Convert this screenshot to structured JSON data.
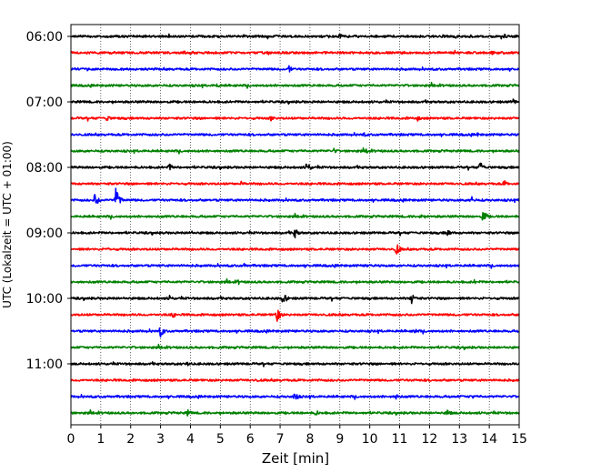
{
  "chart_data": {
    "type": "line",
    "title": "",
    "xlabel": "Zeit  [min]",
    "ylabel": "UTC (Lokalzeit = UTC + 01:00)",
    "xlim": [
      0,
      15
    ],
    "x_ticks": [
      0,
      1,
      2,
      3,
      4,
      5,
      6,
      7,
      8,
      9,
      10,
      11,
      12,
      13,
      14,
      15
    ],
    "y_tick_labels": [
      "06:00",
      "07:00",
      "08:00",
      "09:00",
      "10:00",
      "11:00"
    ],
    "grid": "vertical dotted",
    "colors_cycle": [
      "#000000",
      "#ff0000",
      "#0000ff",
      "#008000"
    ],
    "traces": [
      {
        "time": "06:00",
        "color": "#000000",
        "events": [
          {
            "t": 9.0,
            "a": 0.35
          },
          {
            "t": 14.5,
            "a": 0.3
          }
        ]
      },
      {
        "time": "06:15",
        "color": "#ff0000",
        "events": [
          {
            "t": 3.8,
            "a": 0.3
          },
          {
            "t": 14.1,
            "a": 0.25
          }
        ]
      },
      {
        "time": "06:30",
        "color": "#0000ff",
        "events": [
          {
            "t": 7.3,
            "a": 0.45
          }
        ]
      },
      {
        "time": "06:45",
        "color": "#008000",
        "events": [
          {
            "t": 4.9,
            "a": 0.35
          }
        ]
      },
      {
        "time": "07:00",
        "color": "#000000",
        "events": [
          {
            "t": 14.8,
            "a": 0.4
          }
        ]
      },
      {
        "time": "07:15",
        "color": "#ff0000",
        "events": [
          {
            "t": 1.2,
            "a": 0.45
          },
          {
            "t": 6.7,
            "a": 0.35
          },
          {
            "t": 11.6,
            "a": 0.35
          }
        ]
      },
      {
        "time": "07:30",
        "color": "#0000ff",
        "events": [
          {
            "t": 9.8,
            "a": 0.3
          },
          {
            "t": 13.6,
            "a": 0.25
          }
        ]
      },
      {
        "time": "07:45",
        "color": "#008000",
        "events": [
          {
            "t": 8.8,
            "a": 0.35
          },
          {
            "t": 9.9,
            "a": 0.3
          }
        ]
      },
      {
        "time": "08:00",
        "color": "#000000",
        "events": [
          {
            "t": 7.9,
            "a": 0.75
          },
          {
            "t": 13.7,
            "a": 0.7
          },
          {
            "t": 3.3,
            "a": 0.45
          }
        ]
      },
      {
        "time": "08:15",
        "color": "#ff0000",
        "events": [
          {
            "t": 14.5,
            "a": 0.45
          },
          {
            "t": 5.7,
            "a": 0.3
          }
        ]
      },
      {
        "time": "08:30",
        "color": "#0000ff",
        "events": [
          {
            "t": 0.8,
            "a": 0.85
          },
          {
            "t": 1.5,
            "a": 1.45
          },
          {
            "t": 13.4,
            "a": 0.5
          }
        ]
      },
      {
        "time": "08:45",
        "color": "#008000",
        "events": [
          {
            "t": 13.8,
            "a": 0.8
          },
          {
            "t": 11.7,
            "a": 0.35
          }
        ]
      },
      {
        "time": "09:00",
        "color": "#000000",
        "events": [
          {
            "t": 7.5,
            "a": 0.65
          },
          {
            "t": 12.6,
            "a": 0.55
          },
          {
            "t": 4.0,
            "a": 0.35
          }
        ]
      },
      {
        "time": "09:15",
        "color": "#ff0000",
        "events": [
          {
            "t": 10.9,
            "a": 0.75
          },
          {
            "t": 1.2,
            "a": 0.3
          }
        ]
      },
      {
        "time": "09:30",
        "color": "#0000ff",
        "events": [
          {
            "t": 5.8,
            "a": 0.3
          },
          {
            "t": 9.9,
            "a": 0.3
          }
        ]
      },
      {
        "time": "09:45",
        "color": "#008000",
        "events": [
          {
            "t": 5.6,
            "a": 0.35
          },
          {
            "t": 13.5,
            "a": 0.3
          }
        ]
      },
      {
        "time": "10:00",
        "color": "#000000",
        "events": [
          {
            "t": 7.1,
            "a": 0.8
          },
          {
            "t": 11.4,
            "a": 0.7
          },
          {
            "t": 3.3,
            "a": 0.4
          }
        ]
      },
      {
        "time": "10:15",
        "color": "#ff0000",
        "events": [
          {
            "t": 6.9,
            "a": 0.85
          },
          {
            "t": 3.4,
            "a": 0.45
          }
        ]
      },
      {
        "time": "10:30",
        "color": "#0000ff",
        "events": [
          {
            "t": 3.0,
            "a": 0.75
          },
          {
            "t": 11.5,
            "a": 0.35
          }
        ]
      },
      {
        "time": "10:45",
        "color": "#008000",
        "events": [
          {
            "t": 12.0,
            "a": 0.25
          }
        ]
      },
      {
        "time": "11:00",
        "color": "#000000",
        "events": [
          {
            "t": 3.9,
            "a": 0.3
          }
        ]
      },
      {
        "time": "11:15",
        "color": "#ff0000",
        "events": [
          {
            "t": 6.2,
            "a": 0.25
          }
        ]
      },
      {
        "time": "11:30",
        "color": "#0000ff",
        "events": [
          {
            "t": 7.5,
            "a": 0.6
          },
          {
            "t": 10.9,
            "a": 0.45
          },
          {
            "t": 13.4,
            "a": 0.35
          }
        ]
      },
      {
        "time": "11:45",
        "color": "#008000",
        "events": [
          {
            "t": 3.9,
            "a": 0.45
          },
          {
            "t": 8.2,
            "a": 0.4
          },
          {
            "t": 12.6,
            "a": 0.45
          }
        ]
      }
    ]
  }
}
